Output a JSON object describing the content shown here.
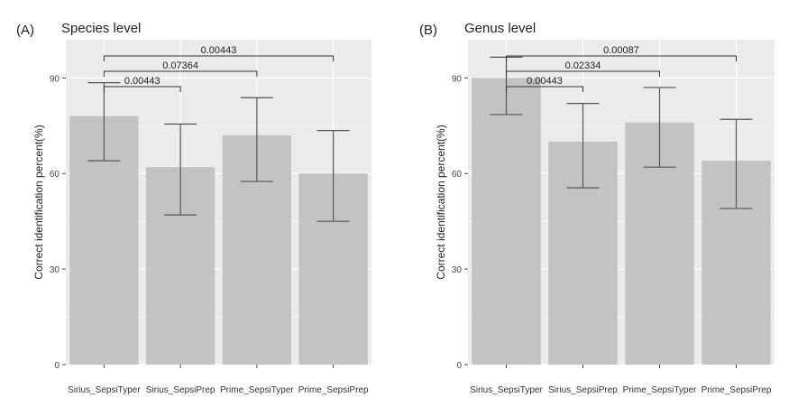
{
  "chart_data": [
    {
      "type": "bar",
      "panel_label": "(A)",
      "title": "Species level",
      "xlabel": "",
      "ylabel": "Correct identification percent(%)",
      "ylim": [
        0,
        102
      ],
      "yticks": [
        0,
        30,
        60,
        90
      ],
      "categories": [
        "Sirius_SepsiTyper",
        "Sirius_SepsiPrep",
        "Prime_SepsiTyper",
        "Prime_SepsiPrep"
      ],
      "values": [
        78,
        62,
        72,
        60
      ],
      "error_low": [
        64,
        47,
        57.5,
        45
      ],
      "error_high": [
        88.5,
        75.5,
        83.8,
        73.5
      ],
      "comparisons": [
        {
          "from": 0,
          "to": 1,
          "label": "0.00443"
        },
        {
          "from": 0,
          "to": 2,
          "label": "0.07364"
        },
        {
          "from": 0,
          "to": 3,
          "label": "0.00443"
        }
      ],
      "grid": true,
      "colors": {
        "panel": "#ebebeb",
        "bar": "#c3c3c3",
        "grid": "#ffffff",
        "error": "#555555"
      }
    },
    {
      "type": "bar",
      "panel_label": "(B)",
      "title": "Genus level",
      "xlabel": "",
      "ylabel": "Correct identification percent(%)",
      "ylim": [
        0,
        102
      ],
      "yticks": [
        0,
        30,
        60,
        90
      ],
      "categories": [
        "Sirius_SepsiTyper",
        "Sirius_SepsiPrep",
        "Prime_SepsiTyper",
        "Prime_SepsiPrep"
      ],
      "values": [
        90,
        70,
        76,
        64
      ],
      "error_low": [
        78.5,
        55.5,
        62,
        49
      ],
      "error_high": [
        96.5,
        82,
        87,
        77
      ],
      "comparisons": [
        {
          "from": 0,
          "to": 1,
          "label": "0.00443"
        },
        {
          "from": 0,
          "to": 2,
          "label": "0.02334"
        },
        {
          "from": 0,
          "to": 3,
          "label": "0.00087"
        }
      ],
      "grid": true,
      "colors": {
        "panel": "#ebebeb",
        "bar": "#c3c3c3",
        "grid": "#ffffff",
        "error": "#555555"
      }
    }
  ]
}
